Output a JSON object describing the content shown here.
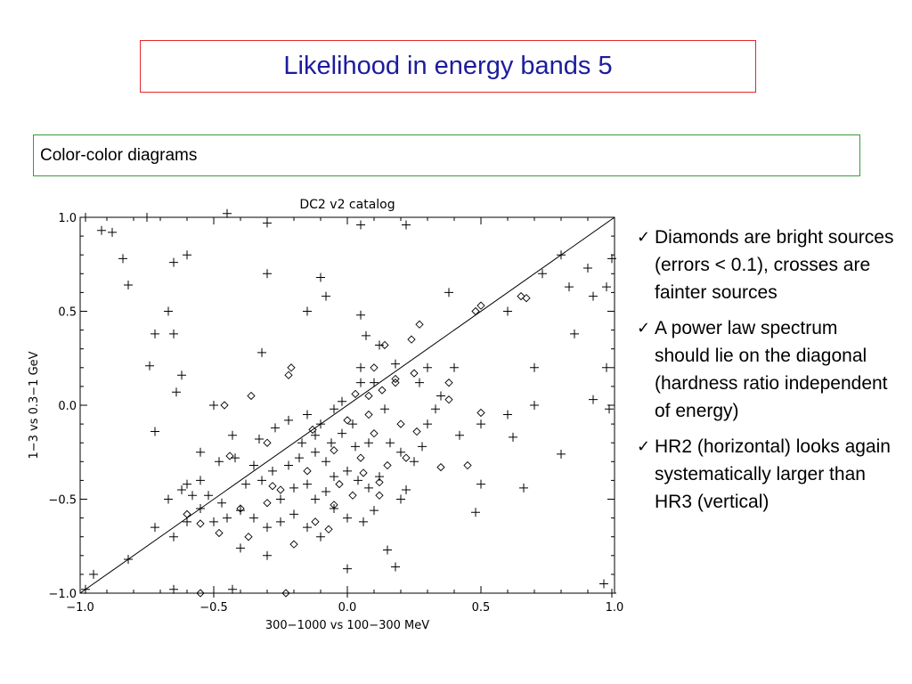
{
  "slide": {
    "title": "Likelihood in energy bands 5",
    "subtitle": "Color-color diagrams",
    "bullets": [
      {
        "icon": "check-icon",
        "text": "Diamonds are bright sources (errors < 0.1), crosses are fainter sources"
      },
      {
        "icon": "check-icon",
        "text": "A power law spectrum should lie on the diagonal (hardness ratio independent of energy)"
      },
      {
        "icon": "check-icon",
        "text": "HR2 (horizontal) looks again systematically larger than HR3 (vertical)"
      }
    ],
    "check_glyph": "✓"
  },
  "chart_data": {
    "type": "scatter",
    "title": "DC2 v2 catalog",
    "xlabel": "300−1000 vs 100−300 MeV",
    "ylabel": "1−3 vs 0.3−1 GeV",
    "xlim": [
      -1.0,
      1.0
    ],
    "ylim": [
      -1.0,
      1.0
    ],
    "xticks": [
      "−1.0",
      "−0.5",
      "0.0",
      "0.5",
      "1.0"
    ],
    "yticks": [
      "−1.0",
      "−0.5",
      "0.0",
      "0.5",
      "1.0"
    ],
    "xtick_values": [
      -1.0,
      -0.5,
      0.0,
      0.5,
      1.0
    ],
    "ytick_values": [
      -1.0,
      -0.5,
      0.0,
      0.5,
      1.0
    ],
    "diagonal": [
      [
        -1.0,
        -1.0
      ],
      [
        1.0,
        1.0
      ]
    ],
    "grid": false,
    "series": [
      {
        "marker": "diamond",
        "points": [
          [
            0.65,
            0.58
          ],
          [
            0.67,
            0.57
          ],
          [
            0.5,
            0.53
          ],
          [
            0.48,
            0.5
          ],
          [
            0.27,
            0.43
          ],
          [
            0.24,
            0.35
          ],
          [
            0.14,
            0.32
          ],
          [
            0.25,
            0.17
          ],
          [
            0.38,
            0.12
          ],
          [
            0.18,
            0.14
          ],
          [
            0.38,
            0.03
          ],
          [
            0.5,
            -0.04
          ],
          [
            0.45,
            -0.32
          ],
          [
            0.35,
            -0.33
          ],
          [
            -0.21,
            0.2
          ],
          [
            -0.22,
            0.16
          ],
          [
            0.08,
            0.05
          ],
          [
            0.05,
            -0.28
          ],
          [
            0.12,
            -0.41
          ],
          [
            0.15,
            -0.32
          ],
          [
            0.22,
            -0.28
          ],
          [
            0.26,
            -0.14
          ],
          [
            0.08,
            -0.05
          ],
          [
            0.13,
            0.08
          ],
          [
            0.0,
            -0.08
          ],
          [
            -0.05,
            -0.24
          ],
          [
            -0.15,
            -0.35
          ],
          [
            -0.25,
            -0.45
          ],
          [
            -0.3,
            -0.52
          ],
          [
            -0.4,
            -0.55
          ],
          [
            -0.48,
            -0.68
          ],
          [
            -0.55,
            -0.63
          ],
          [
            -0.6,
            -0.58
          ],
          [
            -0.44,
            -0.27
          ],
          [
            -0.46,
            0.0
          ],
          [
            -0.3,
            -0.2
          ],
          [
            -0.28,
            -0.43
          ],
          [
            -0.37,
            -0.7
          ],
          [
            -0.2,
            -0.74
          ],
          [
            -0.12,
            -0.62
          ],
          [
            -0.07,
            -0.66
          ],
          [
            0.02,
            -0.48
          ],
          [
            0.1,
            -0.15
          ],
          [
            0.2,
            -0.1
          ],
          [
            0.12,
            -0.48
          ],
          [
            -0.03,
            -0.42
          ],
          [
            -0.13,
            -0.13
          ],
          [
            -0.05,
            -0.53
          ],
          [
            0.06,
            -0.36
          ],
          [
            0.18,
            0.12
          ],
          [
            -0.55,
            -1.0
          ],
          [
            -0.23,
            -1.0
          ],
          [
            -0.36,
            0.05
          ],
          [
            0.03,
            0.06
          ],
          [
            0.1,
            0.2
          ]
        ]
      },
      {
        "marker": "cross",
        "points": [
          [
            -0.98,
            1.0
          ],
          [
            -0.92,
            0.93
          ],
          [
            -0.88,
            0.92
          ],
          [
            -0.82,
            0.64
          ],
          [
            -0.84,
            0.78
          ],
          [
            -0.75,
            1.0
          ],
          [
            -0.65,
            0.76
          ],
          [
            -0.6,
            0.8
          ],
          [
            -0.67,
            0.5
          ],
          [
            -0.74,
            0.21
          ],
          [
            -0.65,
            0.38
          ],
          [
            -0.72,
            0.38
          ],
          [
            -0.62,
            0.16
          ],
          [
            -0.64,
            0.07
          ],
          [
            -0.72,
            -0.14
          ],
          [
            -0.82,
            -0.82
          ],
          [
            -0.98,
            -0.98
          ],
          [
            -0.95,
            -0.9
          ],
          [
            -0.67,
            -0.5
          ],
          [
            -0.45,
            1.02
          ],
          [
            -0.3,
            0.97
          ],
          [
            -0.3,
            0.7
          ],
          [
            -0.1,
            0.68
          ],
          [
            -0.08,
            0.58
          ],
          [
            -0.15,
            0.5
          ],
          [
            -0.32,
            0.28
          ],
          [
            0.05,
            0.96
          ],
          [
            0.22,
            0.96
          ],
          [
            0.05,
            0.48
          ],
          [
            0.07,
            0.37
          ],
          [
            0.12,
            0.32
          ],
          [
            0.18,
            0.22
          ],
          [
            0.3,
            0.2
          ],
          [
            0.4,
            0.2
          ],
          [
            0.38,
            0.6
          ],
          [
            0.6,
            0.5
          ],
          [
            0.8,
            0.8
          ],
          [
            0.73,
            0.7
          ],
          [
            0.83,
            0.63
          ],
          [
            0.9,
            0.73
          ],
          [
            0.99,
            0.78
          ],
          [
            0.97,
            0.63
          ],
          [
            0.92,
            0.58
          ],
          [
            0.85,
            0.38
          ],
          [
            0.97,
            0.2
          ],
          [
            0.92,
            0.03
          ],
          [
            0.98,
            -0.02
          ],
          [
            0.7,
            0.2
          ],
          [
            0.7,
            0.0
          ],
          [
            0.6,
            -0.05
          ],
          [
            0.62,
            -0.17
          ],
          [
            0.5,
            -0.42
          ],
          [
            0.48,
            -0.57
          ],
          [
            0.66,
            -0.44
          ],
          [
            0.8,
            -0.26
          ],
          [
            0.96,
            -0.95
          ],
          [
            0.99,
            -1.0
          ],
          [
            -0.5,
            -1.0
          ],
          [
            -0.65,
            -0.98
          ],
          [
            -0.43,
            -0.98
          ],
          [
            -0.3,
            -0.8
          ],
          [
            -0.4,
            -0.76
          ],
          [
            0.0,
            -0.87
          ],
          [
            0.15,
            -0.77
          ],
          [
            0.18,
            -0.86
          ],
          [
            0.0,
            -1.0
          ],
          [
            0.5,
            -0.1
          ],
          [
            0.42,
            -0.16
          ],
          [
            -0.55,
            -0.4
          ],
          [
            -0.52,
            -0.48
          ],
          [
            -0.47,
            -0.52
          ],
          [
            -0.48,
            -0.3
          ],
          [
            -0.42,
            -0.28
          ],
          [
            -0.35,
            -0.32
          ],
          [
            -0.33,
            -0.18
          ],
          [
            -0.27,
            -0.12
          ],
          [
            -0.22,
            -0.08
          ],
          [
            -0.15,
            -0.05
          ],
          [
            -0.1,
            -0.1
          ],
          [
            -0.05,
            -0.02
          ],
          [
            -0.02,
            0.02
          ],
          [
            0.02,
            -0.1
          ],
          [
            0.05,
            0.12
          ],
          [
            0.1,
            0.12
          ],
          [
            0.14,
            -0.02
          ],
          [
            0.16,
            -0.2
          ],
          [
            0.2,
            -0.25
          ],
          [
            0.25,
            -0.3
          ],
          [
            0.28,
            -0.22
          ],
          [
            0.22,
            -0.45
          ],
          [
            0.2,
            -0.5
          ],
          [
            0.1,
            -0.56
          ],
          [
            0.06,
            -0.62
          ],
          [
            0.0,
            -0.6
          ],
          [
            -0.05,
            -0.55
          ],
          [
            -0.1,
            -0.7
          ],
          [
            -0.15,
            -0.65
          ],
          [
            -0.2,
            -0.58
          ],
          [
            -0.25,
            -0.62
          ],
          [
            -0.3,
            -0.65
          ],
          [
            -0.35,
            -0.6
          ],
          [
            -0.4,
            -0.56
          ],
          [
            -0.45,
            -0.6
          ],
          [
            -0.5,
            -0.62
          ],
          [
            -0.55,
            -0.55
          ],
          [
            -0.6,
            -0.62
          ],
          [
            -0.65,
            -0.7
          ],
          [
            -0.72,
            -0.65
          ],
          [
            -0.58,
            -0.48
          ],
          [
            -0.62,
            -0.45
          ],
          [
            -0.38,
            -0.42
          ],
          [
            -0.32,
            -0.4
          ],
          [
            -0.28,
            -0.35
          ],
          [
            -0.22,
            -0.32
          ],
          [
            -0.18,
            -0.28
          ],
          [
            -0.12,
            -0.25
          ],
          [
            -0.08,
            -0.3
          ],
          [
            -0.05,
            -0.38
          ],
          [
            0.0,
            -0.35
          ],
          [
            0.04,
            -0.4
          ],
          [
            0.08,
            -0.44
          ],
          [
            0.12,
            -0.38
          ],
          [
            -0.25,
            -0.5
          ],
          [
            -0.2,
            -0.44
          ],
          [
            -0.15,
            -0.42
          ],
          [
            -0.12,
            -0.5
          ],
          [
            -0.08,
            -0.46
          ],
          [
            0.08,
            -0.2
          ],
          [
            0.03,
            -0.22
          ],
          [
            -0.02,
            -0.15
          ],
          [
            -0.06,
            -0.2
          ],
          [
            -0.12,
            -0.16
          ],
          [
            -0.17,
            -0.2
          ],
          [
            0.3,
            -0.1
          ],
          [
            0.33,
            -0.02
          ],
          [
            0.35,
            0.05
          ],
          [
            -0.5,
            0.0
          ],
          [
            -0.6,
            -0.42
          ],
          [
            -0.43,
            -0.16
          ],
          [
            -0.55,
            -0.25
          ],
          [
            0.05,
            0.2
          ],
          [
            0.27,
            0.12
          ]
        ]
      }
    ]
  }
}
